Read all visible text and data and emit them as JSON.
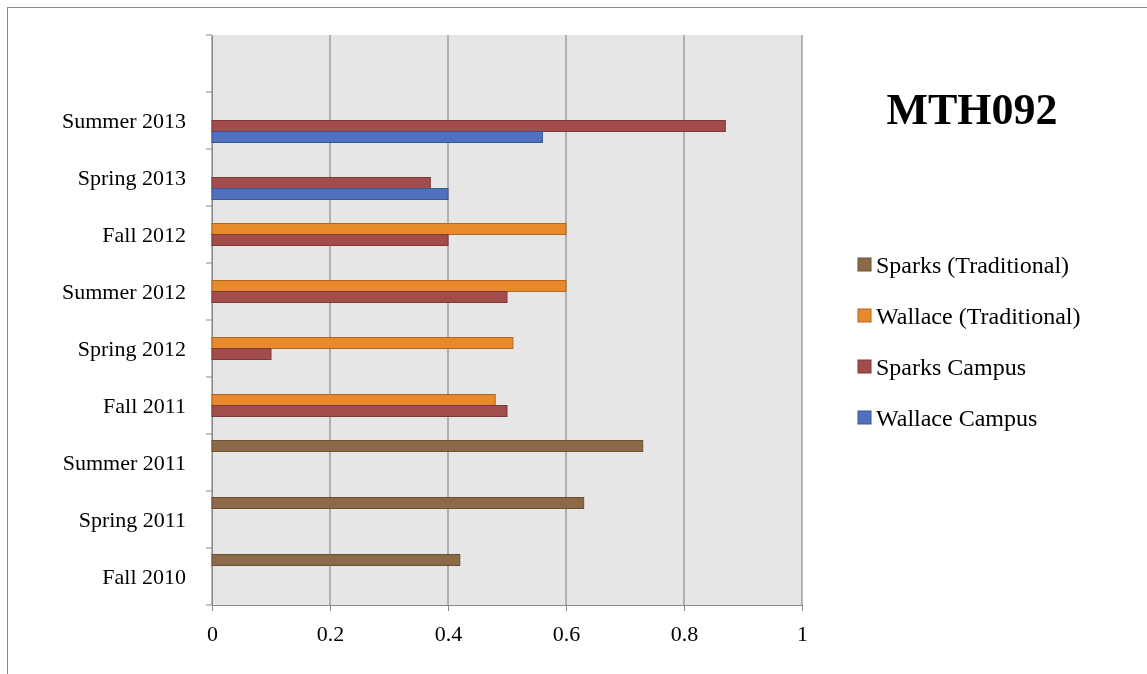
{
  "chart_data": {
    "type": "bar",
    "orientation": "horizontal",
    "title": "MTH092",
    "categories": [
      null,
      "Summer 2013",
      "Spring 2013",
      "Fall 2012",
      "Summer 2012",
      "Spring 2012",
      "Fall 2011",
      "Summer 2011",
      "Spring 2011",
      "Fall 2010"
    ],
    "series": [
      {
        "name": "Sparks (Traditional)",
        "color": "#8c6a48",
        "values": [
          null,
          null,
          null,
          null,
          null,
          null,
          null,
          0.73,
          0.63,
          0.42
        ]
      },
      {
        "name": "Wallace (Traditional)",
        "color": "#e8892c",
        "values": [
          null,
          null,
          null,
          0.6,
          0.6,
          0.51,
          0.48,
          null,
          null,
          null
        ]
      },
      {
        "name": "Sparks Campus",
        "color": "#a34c4c",
        "values": [
          null,
          0.87,
          0.37,
          0.4,
          0.5,
          0.1,
          0.5,
          null,
          null,
          null
        ]
      },
      {
        "name": "Wallace Campus",
        "color": "#5070c0",
        "values": [
          null,
          0.56,
          0.4,
          null,
          null,
          null,
          null,
          null,
          null,
          null
        ]
      }
    ],
    "xlim": [
      0,
      1
    ],
    "xticks": [
      0,
      0.2,
      0.4,
      0.6,
      0.8,
      1
    ],
    "grid": "x",
    "legend": "right"
  }
}
